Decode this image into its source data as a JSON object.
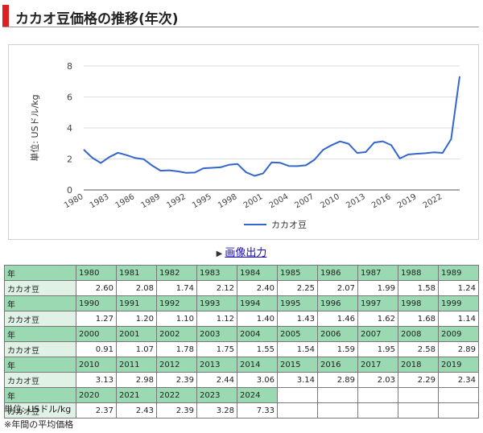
{
  "heading": {
    "title": "カカオ豆価格の推移(年次)"
  },
  "export": {
    "label": "画像出力"
  },
  "chart_data": {
    "type": "line",
    "ylabel": "単位: USドル/kg",
    "xlabel": "",
    "ylim": [
      0,
      8
    ],
    "yticks": [
      0,
      2,
      4,
      6,
      8
    ],
    "xticks": [
      1980,
      1983,
      1986,
      1989,
      1992,
      1995,
      1998,
      2001,
      2004,
      2007,
      2010,
      2013,
      2016,
      2019,
      2022
    ],
    "grid": true,
    "legend": "bottom",
    "color": "#3366cc",
    "x": [
      1980,
      1981,
      1982,
      1983,
      1984,
      1985,
      1986,
      1987,
      1988,
      1989,
      1990,
      1991,
      1992,
      1993,
      1994,
      1995,
      1996,
      1997,
      1998,
      1999,
      2000,
      2001,
      2002,
      2003,
      2004,
      2005,
      2006,
      2007,
      2008,
      2009,
      2010,
      2011,
      2012,
      2013,
      2014,
      2015,
      2016,
      2017,
      2018,
      2019,
      2020,
      2021,
      2022,
      2023,
      2024
    ],
    "series": [
      {
        "name": "カカオ豆",
        "values": [
          2.6,
          2.08,
          1.74,
          2.12,
          2.4,
          2.25,
          2.07,
          1.99,
          1.58,
          1.24,
          1.27,
          1.2,
          1.1,
          1.12,
          1.4,
          1.43,
          1.46,
          1.62,
          1.68,
          1.14,
          0.91,
          1.07,
          1.78,
          1.75,
          1.55,
          1.54,
          1.59,
          1.95,
          2.58,
          2.89,
          3.13,
          2.98,
          2.39,
          2.44,
          3.06,
          3.14,
          2.89,
          2.03,
          2.29,
          2.34,
          2.37,
          2.43,
          2.39,
          3.28,
          7.33
        ]
      }
    ]
  },
  "table": {
    "year_header": "年",
    "row_label": "カカオ豆"
  },
  "notes": {
    "unit": "単位: USドル/kg",
    "average": "※年間の平均価格"
  }
}
